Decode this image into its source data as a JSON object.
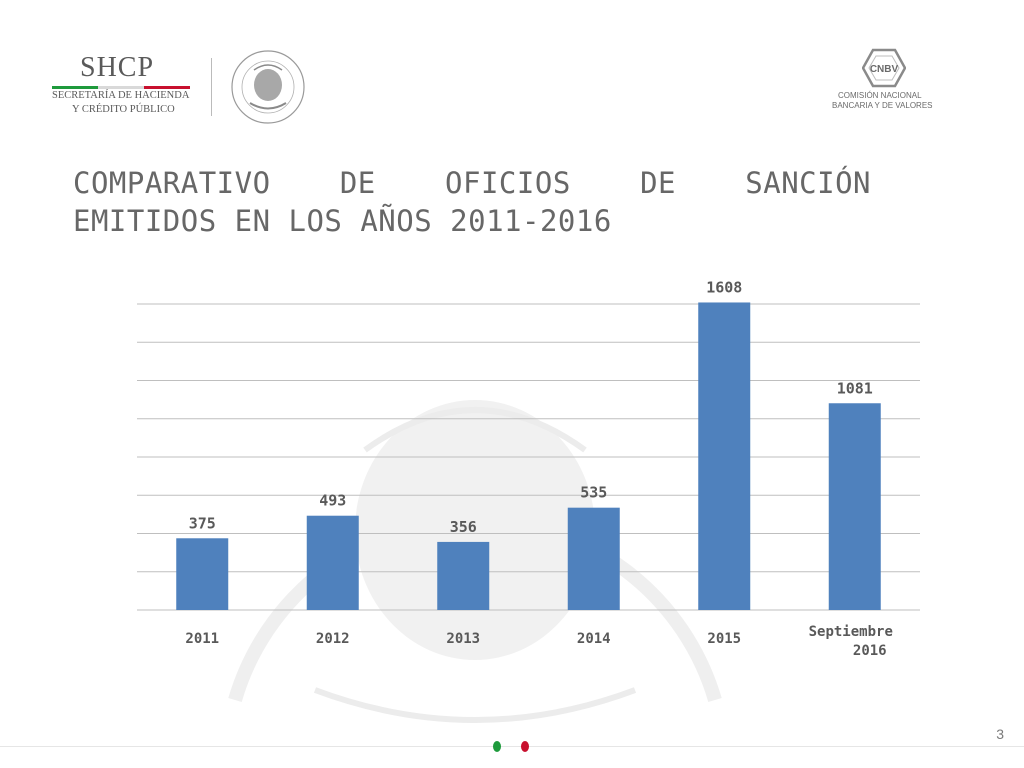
{
  "header": {
    "logo_text": "SHCP",
    "logo_sub1": "SECRETARÍA DE HACIENDA",
    "logo_sub2": "Y CRÉDITO PÚBLICO",
    "seal_name": "escudo-nacional",
    "cnbv_text": "CNBV",
    "cnbv_line1": "COMISIÓN NACIONAL",
    "cnbv_line2": "BANCARIA Y DE VALORES"
  },
  "title": {
    "line1": "COMPARATIVO DE OFICIOS DE SANCIÓN",
    "line2": "EMITIDOS EN LOS AÑOS 2011-2016"
  },
  "colors": {
    "bar": "#4f81bd",
    "grid": "#bfbfbf",
    "text": "#595959",
    "green": "#1e9a3c",
    "red": "#c8102e"
  },
  "chart_data": {
    "type": "bar",
    "categories": [
      "2011",
      "2012",
      "2013",
      "2014",
      "2015",
      "Septiembre 2016"
    ],
    "values": [
      375,
      493,
      356,
      535,
      1608,
      1081
    ],
    "data_labels": [
      "375",
      "493",
      "356",
      "535",
      "1608",
      "1081"
    ],
    "ylim": [
      0,
      1600
    ],
    "y_grid_step": 200,
    "grid": true,
    "legend": "none"
  },
  "footer": {
    "page_number": "3"
  }
}
